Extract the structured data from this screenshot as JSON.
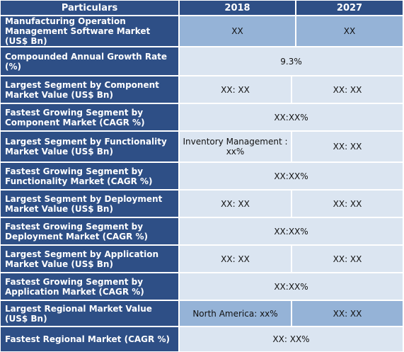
{
  "header": {
    "particulars": "Particulars",
    "year1": "2018",
    "year2": "2027"
  },
  "rows": [
    {
      "label": "Manufacturing Operation Management Software Market (US$ Bn)",
      "v2018": "XX",
      "v2027": "XX"
    },
    {
      "label": "Compounded Annual Growth Rate (%)",
      "span": "9.3%"
    },
    {
      "label": "Largest Segment by Component Market Value (US$ Bn)",
      "v2018": "XX: XX",
      "v2027": "XX: XX"
    },
    {
      "label": "Fastest Growing Segment by Component Market (CAGR %)",
      "span": "XX:XX%"
    },
    {
      "label": "Largest Segment by Functionality Market Value (US$ Bn)",
      "v2018": "Inventory Management : xx%",
      "v2027": "XX: XX"
    },
    {
      "label": "Fastest Growing Segment by Functionality Market (CAGR %)",
      "span": "XX:XX%"
    },
    {
      "label": "Largest Segment by Deployment Market Value (US$ Bn)",
      "v2018": "XX: XX",
      "v2027": "XX: XX"
    },
    {
      "label": "Fastest Growing Segment by Deployment Market (CAGR %)",
      "span": "XX:XX%"
    },
    {
      "label": "Largest Segment by Application Market Value (US$ Bn)",
      "v2018": "XX: XX",
      "v2027": "XX: XX"
    },
    {
      "label": "Fastest Growing Segment by Application Market (CAGR %)",
      "span": "XX:XX%"
    },
    {
      "label": "Largest Regional Market Value (US$ Bn)",
      "v2018": "North America: xx%",
      "v2027": "XX: XX"
    },
    {
      "label": "Fastest Regional Market (CAGR %)",
      "span": "XX: XX%"
    }
  ],
  "colors": {
    "header_bg": "#2e4f86",
    "cell_light": "#dbe5f1",
    "cell_blue": "#95b3d7"
  }
}
